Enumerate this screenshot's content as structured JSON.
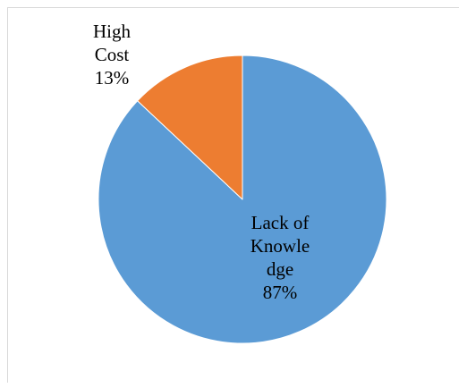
{
  "chart_data": {
    "type": "pie",
    "title": "",
    "categories": [
      "Lack of Knowledge",
      "High Cost"
    ],
    "values": [
      87,
      13
    ],
    "series": [
      {
        "values": [
          87,
          13
        ]
      }
    ],
    "slices": [
      {
        "label_lines": [
          "Lack of",
          "Knowle",
          "dge",
          "87%"
        ],
        "value": 87,
        "color": "#5b9bd5"
      },
      {
        "label_lines": [
          "High",
          "Cost",
          "13%"
        ],
        "value": 13,
        "color": "#ed7d31"
      }
    ],
    "start": "12 o'clock",
    "direction": "clockwise",
    "legend": "none"
  }
}
